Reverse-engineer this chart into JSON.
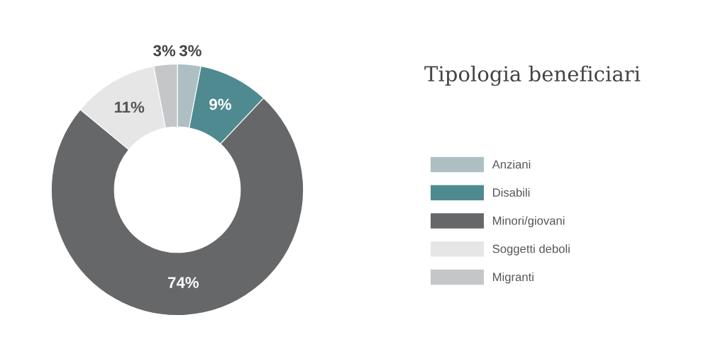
{
  "chart_data": {
    "type": "donut",
    "title": "Tipologia beneficiari",
    "categories": [
      "Anziani",
      "Disabili",
      "Minori/giovani",
      "Soggetti deboli",
      "Migranti"
    ],
    "values": [
      3,
      9,
      74,
      11,
      3
    ],
    "value_labels": [
      "3%",
      "9%",
      "74%",
      "11%",
      "3%"
    ],
    "colors": [
      "#adbfc2",
      "#4f8a91",
      "#666769",
      "#e6e6e6",
      "#c5c6c7"
    ],
    "legend": "right"
  }
}
